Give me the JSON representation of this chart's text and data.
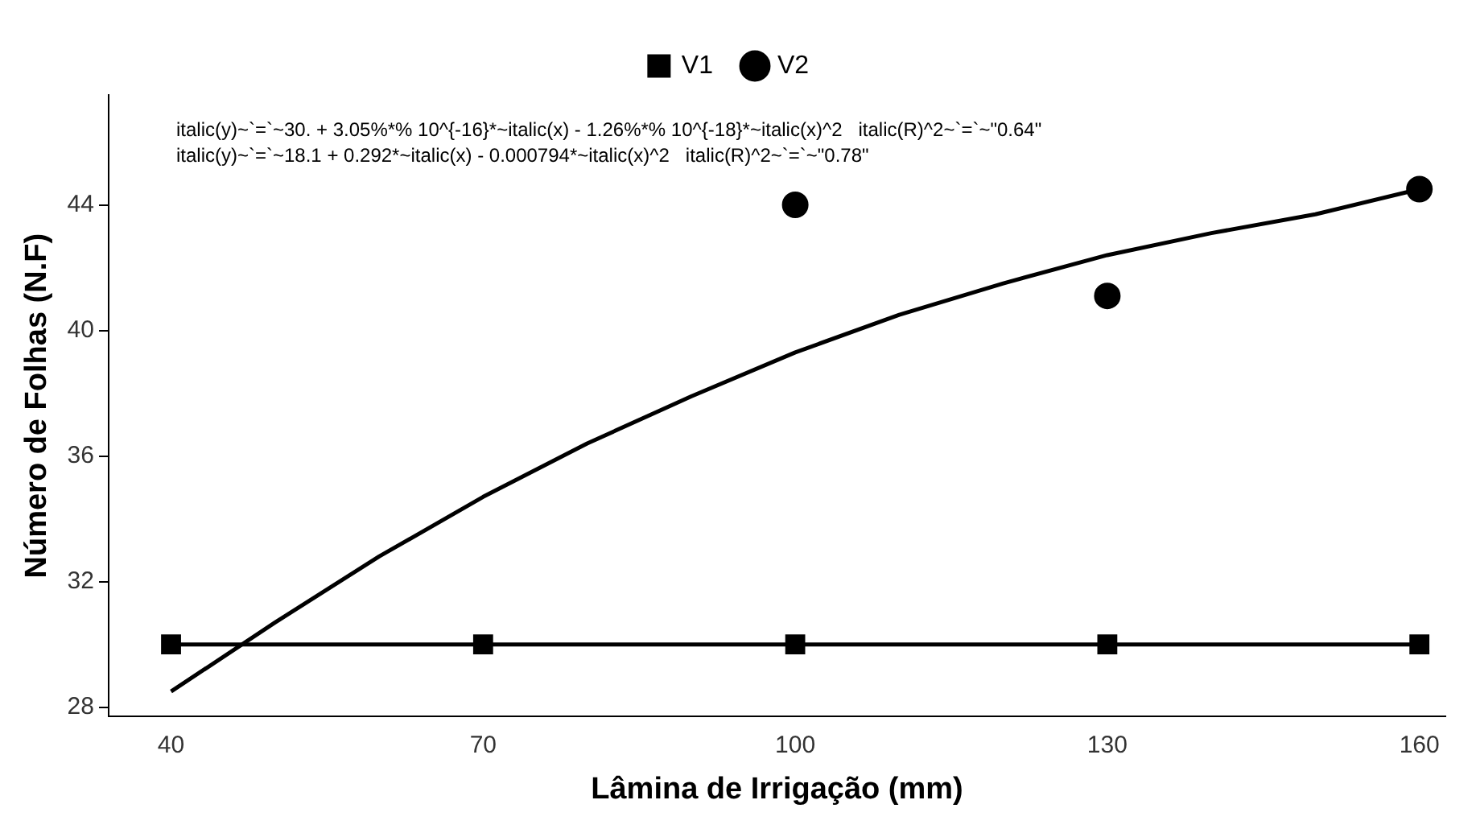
{
  "chart_data": {
    "type": "scatter",
    "xlabel": "Lâmina de Irrigação (mm)",
    "ylabel": "Número de Folhas (N.F)",
    "annotations": [
      "italic(y)~`=`~30. + 3.05%*% 10^{-16}*~italic(x) - 1.26%*% 10^{-18}*~italic(x)^2   italic(R)^2~`=`~\"0.64\"",
      "italic(y)~`=`~18.1 + 0.292*~italic(x) - 0.000794*~italic(x)^2   italic(R)^2~`=`~\"0.78\""
    ],
    "x": [
      40,
      70,
      100,
      130,
      160
    ],
    "series": [
      {
        "name": "V1",
        "color": "#000000",
        "marker": "square",
        "values": [
          30,
          30,
          30,
          30,
          30
        ]
      },
      {
        "name": "V2",
        "color": "#000000",
        "marker": "circle",
        "values": [
          null,
          null,
          44,
          41.1,
          44.5
        ]
      },
      {
        "color": "#000000",
        "type": "line",
        "marker": "none",
        "x": [
          40,
          160
        ],
        "values": [
          30,
          30
        ]
      },
      {
        "color": "#000000",
        "type": "line",
        "marker": "none",
        "x": [
          40,
          50,
          60,
          70,
          80,
          90,
          100,
          110,
          120,
          130,
          140,
          150,
          160
        ],
        "values": [
          28.5,
          30.7,
          32.8,
          34.7,
          36.4,
          37.9,
          39.3,
          40.5,
          41.5,
          42.4,
          43.1,
          43.7,
          44.5
        ]
      }
    ],
    "xlim": [
      34,
      162.5
    ],
    "xticks": [
      40,
      70,
      100,
      130,
      160
    ],
    "ylim": [
      27.7,
      47.5
    ],
    "yticks": [
      28,
      32,
      36,
      40,
      44
    ],
    "grid": false,
    "legend": "top"
  }
}
